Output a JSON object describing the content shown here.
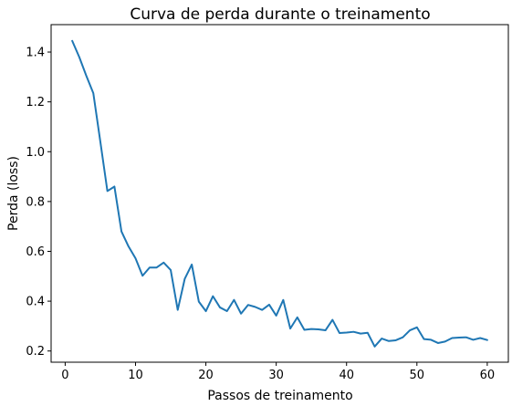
{
  "chart_data": {
    "type": "line",
    "title": "Curva de perda durante o treinamento",
    "xlabel": "Passos de treinamento",
    "ylabel": "Perda (loss)",
    "xlim": [
      -2.0,
      63.0
    ],
    "ylim": [
      0.155,
      1.51
    ],
    "xticks": [
      0,
      10,
      20,
      30,
      40,
      50,
      60
    ],
    "yticks": [
      0.2,
      0.4,
      0.6,
      0.8,
      1.0,
      1.2,
      1.4
    ],
    "ytick_labels": [
      "0.2",
      "0.4",
      "0.6",
      "0.8",
      "1.0",
      "1.2",
      "1.4"
    ],
    "grid": false,
    "legend": "none",
    "line_color": "#1f77b4",
    "series": [
      {
        "x": [
          1,
          2,
          3,
          4,
          5,
          6,
          7,
          8,
          9,
          10,
          11,
          12,
          13,
          14,
          15,
          16,
          17,
          18,
          19,
          20,
          21,
          22,
          23,
          24,
          25,
          26,
          27,
          28,
          29,
          30,
          31,
          32,
          33,
          34,
          35,
          36,
          37,
          38,
          39,
          40,
          41,
          42,
          43,
          44,
          45,
          46,
          47,
          48,
          49,
          50,
          51,
          52,
          53,
          54,
          55,
          56,
          57,
          58,
          59,
          60
        ],
        "values": [
          1.445,
          1.38,
          1.305,
          1.235,
          1.04,
          0.842,
          0.86,
          0.68,
          0.62,
          0.572,
          0.502,
          0.535,
          0.535,
          0.555,
          0.525,
          0.365,
          0.49,
          0.547,
          0.398,
          0.36,
          0.42,
          0.375,
          0.36,
          0.405,
          0.35,
          0.385,
          0.377,
          0.365,
          0.386,
          0.342,
          0.405,
          0.29,
          0.335,
          0.285,
          0.288,
          0.287,
          0.283,
          0.325,
          0.272,
          0.274,
          0.277,
          0.27,
          0.273,
          0.218,
          0.25,
          0.24,
          0.243,
          0.255,
          0.283,
          0.295,
          0.248,
          0.245,
          0.232,
          0.238,
          0.252,
          0.254,
          0.255,
          0.245,
          0.252,
          0.244
        ]
      }
    ]
  }
}
